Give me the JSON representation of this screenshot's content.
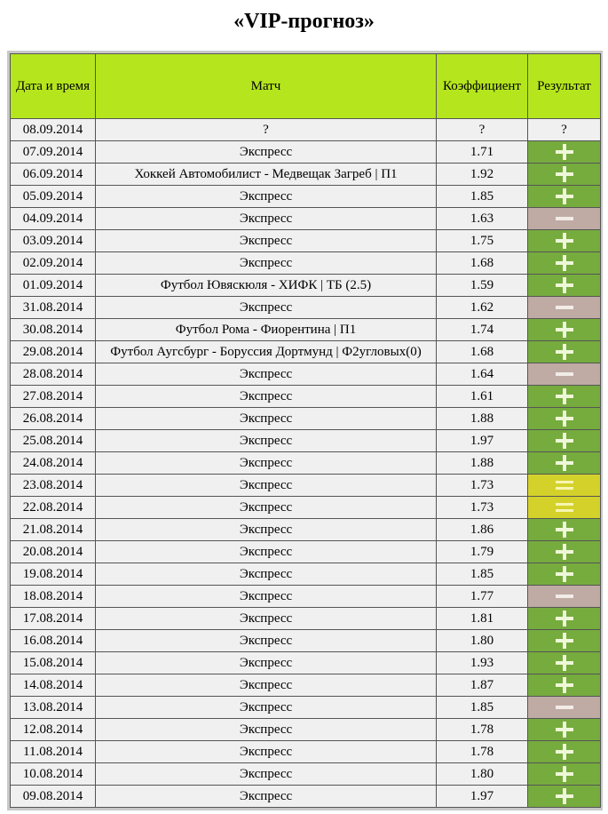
{
  "title": "«VIP-прогноз»",
  "colors": {
    "header": "#b5e61d",
    "win": "#76ab3e",
    "loss": "#bfaba4",
    "draw": "#d4d22a"
  },
  "headers": [
    "Дата и время",
    "Матч",
    "Коэффициент",
    "Результат"
  ],
  "rows": [
    [
      "08.09.2014",
      "?",
      "?",
      "?"
    ],
    [
      "07.09.2014",
      "Экспресс",
      "1.71",
      "plus"
    ],
    [
      "06.09.2014",
      "Хоккей Автомобилист - Медвещак Загреб | П1",
      "1.92",
      "plus"
    ],
    [
      "05.09.2014",
      "Экспресс",
      "1.85",
      "plus"
    ],
    [
      "04.09.2014",
      "Экспресс",
      "1.63",
      "minus"
    ],
    [
      "03.09.2014",
      "Экспресс",
      "1.75",
      "plus"
    ],
    [
      "02.09.2014",
      "Экспресс",
      "1.68",
      "plus"
    ],
    [
      "01.09.2014",
      "Футбол Ювяскюля - ХИФК | ТБ (2.5)",
      "1.59",
      "plus"
    ],
    [
      "31.08.2014",
      "Экспресс",
      "1.62",
      "minus"
    ],
    [
      "30.08.2014",
      "Футбол Рома - Фиорентина | П1",
      "1.74",
      "plus"
    ],
    [
      "29.08.2014",
      "Футбол Аугсбург - Боруссия Дортмунд | Ф2угловых(0)",
      "1.68",
      "plus"
    ],
    [
      "28.08.2014",
      "Экспресс",
      "1.64",
      "minus"
    ],
    [
      "27.08.2014",
      "Экспресс",
      "1.61",
      "plus"
    ],
    [
      "26.08.2014",
      "Экспресс",
      "1.88",
      "plus"
    ],
    [
      "25.08.2014",
      "Экспресс",
      "1.97",
      "plus"
    ],
    [
      "24.08.2014",
      "Экспресс",
      "1.88",
      "plus"
    ],
    [
      "23.08.2014",
      "Экспресс",
      "1.73",
      "eq"
    ],
    [
      "22.08.2014",
      "Экспресс",
      "1.73",
      "eq"
    ],
    [
      "21.08.2014",
      "Экспресс",
      "1.86",
      "plus"
    ],
    [
      "20.08.2014",
      "Экспресс",
      "1.79",
      "plus"
    ],
    [
      "19.08.2014",
      "Экспресс",
      "1.85",
      "plus"
    ],
    [
      "18.08.2014",
      "Экспресс",
      "1.77",
      "minus"
    ],
    [
      "17.08.2014",
      "Экспресс",
      "1.81",
      "plus"
    ],
    [
      "16.08.2014",
      "Экспресс",
      "1.80",
      "plus"
    ],
    [
      "15.08.2014",
      "Экспресс",
      "1.93",
      "plus"
    ],
    [
      "14.08.2014",
      "Экспресс",
      "1.87",
      "plus"
    ],
    [
      "13.08.2014",
      "Экспресс",
      "1.85",
      "minus"
    ],
    [
      "12.08.2014",
      "Экспресс",
      "1.78",
      "plus"
    ],
    [
      "11.08.2014",
      "Экспресс",
      "1.78",
      "plus"
    ],
    [
      "10.08.2014",
      "Экспресс",
      "1.80",
      "plus"
    ],
    [
      "09.08.2014",
      "Экспресс",
      "1.97",
      "plus"
    ]
  ]
}
